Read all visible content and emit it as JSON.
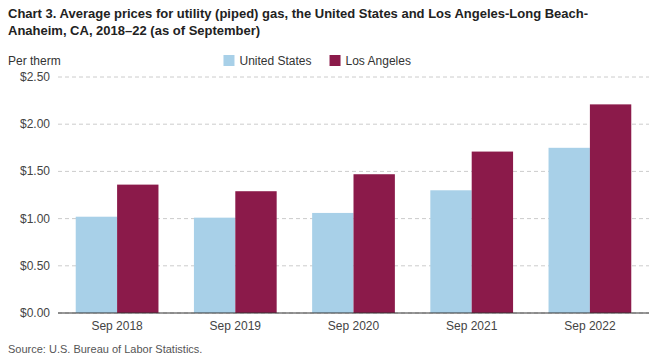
{
  "chart_data": {
    "type": "bar",
    "title": "Chart 3. Average prices for utility (piped) gas, the United States and Los Angeles-Long Beach-\nAnaheim, CA, 2018–22 (as of September)",
    "y_label": "Per therm",
    "source": "Source: U.S. Bureau of Labor Statistics.",
    "categories": [
      "Sep 2018",
      "Sep 2019",
      "Sep 2020",
      "Sep 2021",
      "Sep 2022"
    ],
    "series": [
      {
        "name": "United States",
        "color": "#a8d0e8",
        "values": [
          1.02,
          1.01,
          1.06,
          1.3,
          1.75
        ]
      },
      {
        "name": "Los Angeles",
        "color": "#8b1a4a",
        "values": [
          1.36,
          1.29,
          1.47,
          1.71,
          2.21
        ]
      }
    ],
    "ylim": [
      0,
      2.5
    ],
    "yticks": [
      {
        "value": 0.0,
        "label": "$0.00"
      },
      {
        "value": 0.5,
        "label": "$0.50"
      },
      {
        "value": 1.0,
        "label": "$1.00"
      },
      {
        "value": 1.5,
        "label": "$1.50"
      },
      {
        "value": 2.0,
        "label": "$2.00"
      },
      {
        "value": 2.5,
        "label": "$2.50"
      }
    ],
    "grid": true,
    "legend": "top"
  }
}
